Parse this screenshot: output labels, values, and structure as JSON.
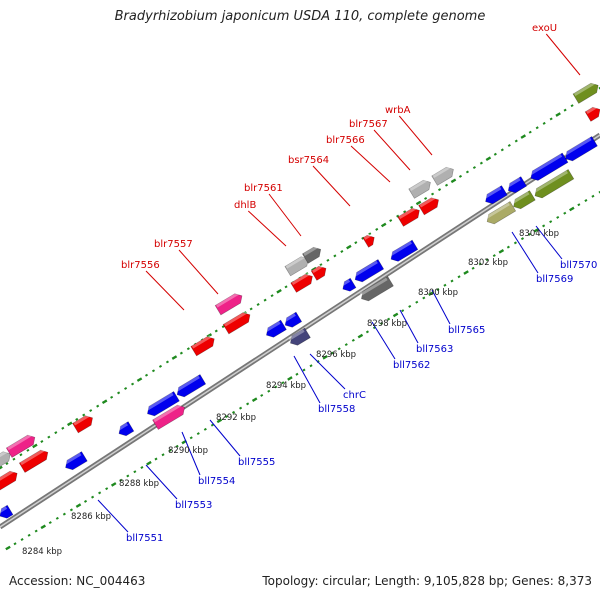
{
  "title": "Bradyrhizobium japonicum USDA 110, complete genome",
  "footer": {
    "accession": "Accession: NC_004463",
    "summary": "Topology: circular; Length: 9,105,828 bp; Genes: 8,373"
  },
  "colors": {
    "forward_label": "#d40000",
    "reverse_label": "#0000cc",
    "backbone": "#8a8a8a",
    "tick": "#1f8a1f"
  },
  "scale_ticks": [
    "8284 kbp",
    "8286 kbp",
    "8288 kbp",
    "8290 kbp",
    "8292 kbp",
    "8294 kbp",
    "8296 kbp",
    "8298 kbp",
    "8300 kbp",
    "8302 kbp",
    "8304 kbp"
  ],
  "forward_labels": [
    "blr7556",
    "blr7557",
    "dhlB",
    "blr7561",
    "bsr7564",
    "blr7566",
    "blr7567",
    "wrbA",
    "exoU"
  ],
  "reverse_labels": [
    "bll7551",
    "bll7553",
    "bll7554",
    "bll7555",
    "bll7558",
    "chrC",
    "bll7562",
    "bll7563",
    "bll7565",
    "bll7569",
    "bll7570"
  ]
}
